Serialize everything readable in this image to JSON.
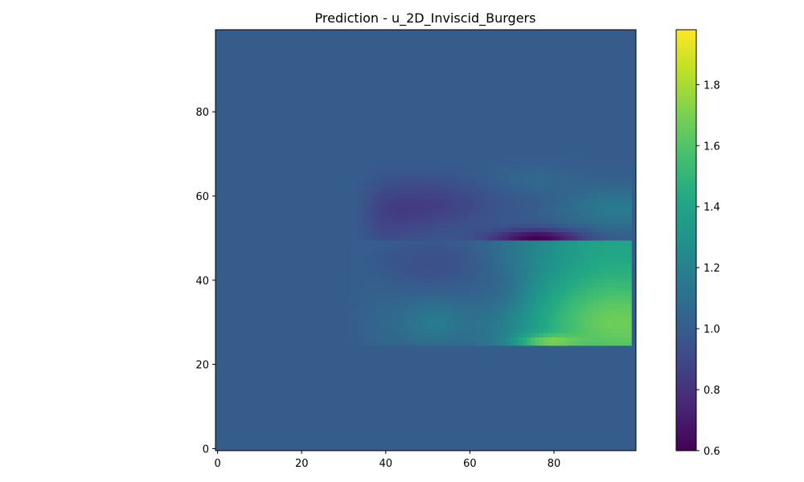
{
  "chart_data": {
    "type": "heatmap",
    "title": "Prediction - u_2D_Inviscid_Burgers",
    "xlabel": "",
    "ylabel": "",
    "grid_size": 100,
    "xlim": [
      0,
      99
    ],
    "ylim": [
      0,
      99
    ],
    "x_ticks": [
      "0",
      "20",
      "40",
      "60",
      "80"
    ],
    "y_ticks": [
      "0",
      "20",
      "40",
      "60",
      "80"
    ],
    "colormap": "viridis",
    "color_range": [
      0.6,
      1.98
    ],
    "colorbar_ticks": [
      "0.6",
      "0.8",
      "1.0",
      "1.2",
      "1.4",
      "1.6",
      "1.8"
    ],
    "background_value": 1.0,
    "features": {
      "low_region": {
        "x": [
          32,
          99
        ],
        "y": [
          50,
          68
        ],
        "min_value": 0.6,
        "min_at": [
          76,
          50
        ]
      },
      "high_region": {
        "x": [
          32,
          99
        ],
        "y": [
          25,
          49
        ],
        "max_value": 1.98,
        "max_at": [
          78,
          25
        ]
      }
    },
    "grid": false
  }
}
